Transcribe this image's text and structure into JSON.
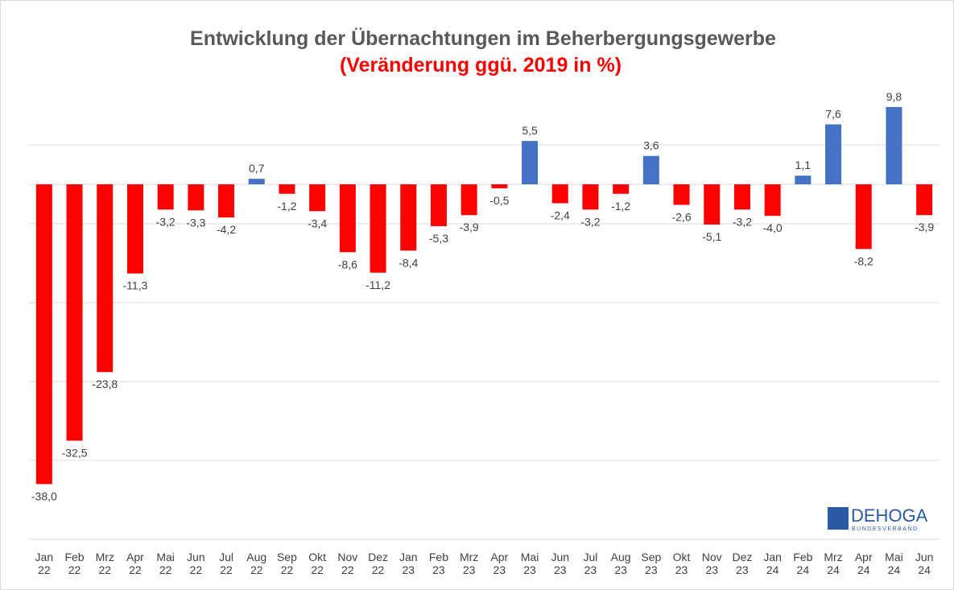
{
  "chart_data": {
    "type": "bar",
    "title": "Entwicklung der Übernachtungen im Beherbergungsgewerbe",
    "subtitle": "(Veränderung ggü. 2019 in %)",
    "categories": [
      "Jan 22",
      "Feb 22",
      "Mrz 22",
      "Apr 22",
      "Mai 22",
      "Jun 22",
      "Jul 22",
      "Aug 22",
      "Sep 22",
      "Okt 22",
      "Nov 22",
      "Dez 22",
      "Jan 23",
      "Feb 23",
      "Mrz 23",
      "Apr 23",
      "Mai 23",
      "Jun 23",
      "Jul 23",
      "Aug 23",
      "Sep 23",
      "Okt 23",
      "Nov 23",
      "Dez 23",
      "Jan 24",
      "Feb 24",
      "Mrz 24",
      "Apr 24",
      "Mai 24",
      "Jun 24"
    ],
    "values": [
      -38.0,
      -32.5,
      -23.8,
      -11.3,
      -3.2,
      -3.3,
      -4.2,
      0.7,
      -1.2,
      -3.4,
      -8.6,
      -11.2,
      -8.4,
      -5.3,
      -3.9,
      -0.5,
      5.5,
      -2.4,
      -3.2,
      -1.2,
      3.6,
      -2.6,
      -5.1,
      -3.2,
      -4.0,
      1.1,
      7.6,
      -8.2,
      9.8,
      -3.9
    ],
    "value_labels": [
      "-38,0",
      "-32,5",
      "-23,8",
      "-11,3",
      "-3,2",
      "-3,3",
      "-4,2",
      "0,7",
      "-1,2",
      "-3,4",
      "-8,6",
      "-11,2",
      "-8,4",
      "-5,3",
      "-3,9",
      "-0,5",
      "5,5",
      "-2,4",
      "-3,2",
      "-1,2",
      "3,6",
      "-2,6",
      "-5,1",
      "-3,2",
      "-4,0",
      "1,1",
      "7,6",
      "-8,2",
      "9,8",
      "-3,9"
    ],
    "color": "#4472c4",
    "negative_color": "#ff0000",
    "ylim": [
      -45,
      10
    ],
    "yticks": [
      -45,
      -35,
      -25,
      -15,
      -5,
      5
    ],
    "grid": true,
    "logo": {
      "name": "DEHOGA",
      "sub": "BUNDESVERBAND"
    }
  }
}
